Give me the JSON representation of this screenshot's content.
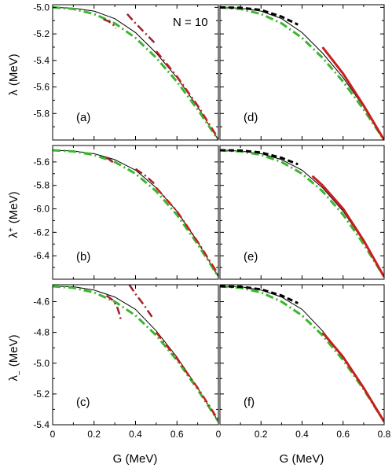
{
  "annotation": "N = 10",
  "y_titles": [
    {
      "base": "λ",
      "sup": "",
      "sub": "",
      "unit": "(MeV)"
    },
    {
      "base": "λ",
      "sup": "+",
      "sub": "",
      "unit": "(MeV)"
    },
    {
      "base": "λ",
      "sup": "",
      "sub": "−",
      "unit": "(MeV)"
    }
  ],
  "x_title": "G  (MeV)",
  "colors": {
    "exact": "#000000",
    "dark_red": "#a0202a",
    "red": "#c81e1e",
    "green": "#3ab72e",
    "black_dash": "#000000"
  },
  "chart_data": [
    {
      "type": "line",
      "label": "(a)",
      "xlim": [
        0,
        0.8
      ],
      "ylim": [
        -6.0,
        -4.98
      ],
      "yticks": [
        -5.0,
        -5.2,
        -5.4,
        -5.6,
        -5.8
      ],
      "ytick_labels": [
        "-5.0",
        "-5.2",
        "-5.4",
        "-5.6",
        "-5.8"
      ],
      "xticks": [
        0,
        0.2,
        0.4,
        0.6,
        0.8
      ],
      "xtick_labels": [],
      "series": [
        {
          "color": "exact",
          "style": "solid",
          "width": 1,
          "x": [
            0,
            0.1,
            0.2,
            0.3,
            0.4,
            0.5,
            0.6,
            0.7,
            0.8
          ],
          "y": [
            -5.0,
            -5.006,
            -5.028,
            -5.085,
            -5.19,
            -5.345,
            -5.53,
            -5.75,
            -6.0
          ]
        },
        {
          "color": "green",
          "style": "dashdot",
          "width": 3,
          "x": [
            0,
            0.1,
            0.2,
            0.3,
            0.4,
            0.5,
            0.6,
            0.7,
            0.8
          ],
          "y": [
            -5.0,
            -5.012,
            -5.05,
            -5.12,
            -5.23,
            -5.38,
            -5.56,
            -5.77,
            -6.0
          ]
        },
        {
          "color": "dark_red",
          "style": "dashdot",
          "width": 2.5,
          "x": [
            0.245,
            0.27,
            0.29,
            0.305
          ],
          "y": [
            -5.09,
            -5.105,
            -5.125,
            -5.16
          ]
        },
        {
          "color": "dark_red",
          "style": "dashdot",
          "width": 2.5,
          "x": [
            0.36,
            0.4,
            0.45,
            0.5
          ],
          "y": [
            -5.05,
            -5.12,
            -5.2,
            -5.28
          ]
        },
        {
          "color": "red",
          "style": "dashdot",
          "width": 2.5,
          "x": [
            0.5,
            0.6,
            0.7,
            0.8
          ],
          "y": [
            -5.33,
            -5.52,
            -5.74,
            -5.99
          ]
        }
      ]
    },
    {
      "type": "line",
      "label": "(b)",
      "xlim": [
        0,
        0.8
      ],
      "ylim": [
        -6.6,
        -5.46
      ],
      "yticks": [
        -5.6,
        -5.8,
        -6.0,
        -6.2,
        -6.4
      ],
      "ytick_labels": [
        "-5.6",
        "-5.8",
        "-6.0",
        "-6.2",
        "-6.4"
      ],
      "xticks": [
        0,
        0.2,
        0.4,
        0.6,
        0.8
      ],
      "xtick_labels": [],
      "series": [
        {
          "color": "exact",
          "style": "solid",
          "width": 1,
          "x": [
            0,
            0.1,
            0.2,
            0.3,
            0.4,
            0.5,
            0.6,
            0.7,
            0.8
          ],
          "y": [
            -5.5,
            -5.507,
            -5.53,
            -5.58,
            -5.67,
            -5.82,
            -6.02,
            -6.28,
            -6.58
          ]
        },
        {
          "color": "green",
          "style": "dashdot",
          "width": 3,
          "x": [
            0,
            0.1,
            0.2,
            0.3,
            0.4,
            0.5,
            0.6,
            0.7,
            0.8
          ],
          "y": [
            -5.5,
            -5.51,
            -5.54,
            -5.6,
            -5.7,
            -5.85,
            -6.05,
            -6.3,
            -6.58
          ]
        },
        {
          "color": "dark_red",
          "style": "dashdot",
          "width": 2.5,
          "x": [
            0.26,
            0.28,
            0.3
          ],
          "y": [
            -5.565,
            -5.585,
            -5.62
          ]
        },
        {
          "color": "dark_red",
          "style": "dashdot",
          "width": 2.5,
          "x": [
            0.4,
            0.45,
            0.5
          ],
          "y": [
            -5.66,
            -5.72,
            -5.8
          ]
        },
        {
          "color": "red",
          "style": "dashdot",
          "width": 2.5,
          "x": [
            0.5,
            0.6,
            0.7,
            0.8
          ],
          "y": [
            -5.82,
            -6.02,
            -6.28,
            -6.56
          ]
        }
      ]
    },
    {
      "type": "line",
      "label": "(c)",
      "xlim": [
        0,
        0.8
      ],
      "ylim": [
        -5.4,
        -4.49
      ],
      "yticks": [
        -4.6,
        -4.8,
        -5.0,
        -5.2,
        -5.4
      ],
      "ytick_labels": [
        "-4.6",
        "-4.8",
        "-5.0",
        "-5.2",
        "-5.4"
      ],
      "xticks": [
        0,
        0.2,
        0.4,
        0.6,
        0.8
      ],
      "xtick_labels": [
        "0",
        "0.2",
        "0.4",
        "0.6",
        "0"
      ],
      "series": [
        {
          "color": "exact",
          "style": "solid",
          "width": 1,
          "x": [
            0,
            0.1,
            0.2,
            0.3,
            0.4,
            0.5,
            0.6,
            0.7,
            0.8
          ],
          "y": [
            -4.5,
            -4.503,
            -4.525,
            -4.57,
            -4.65,
            -4.79,
            -4.96,
            -5.16,
            -5.38
          ]
        },
        {
          "color": "green",
          "style": "dashdot",
          "width": 3,
          "x": [
            0,
            0.1,
            0.2,
            0.3,
            0.4,
            0.5,
            0.6,
            0.7,
            0.8
          ],
          "y": [
            -4.5,
            -4.51,
            -4.54,
            -4.6,
            -4.69,
            -4.82,
            -4.98,
            -5.17,
            -5.38
          ]
        },
        {
          "color": "dark_red",
          "style": "dashdot",
          "width": 2.5,
          "x": [
            0.26,
            0.29,
            0.31,
            0.32,
            0.33
          ],
          "y": [
            -4.56,
            -4.59,
            -4.63,
            -4.67,
            -4.72
          ]
        },
        {
          "color": "dark_red",
          "style": "dashdot",
          "width": 2.5,
          "x": [
            0.37,
            0.4,
            0.44,
            0.48
          ],
          "y": [
            -4.49,
            -4.55,
            -4.62,
            -4.7
          ]
        },
        {
          "color": "red",
          "style": "dashdot",
          "width": 2.5,
          "x": [
            0.5,
            0.6,
            0.7,
            0.8
          ],
          "y": [
            -4.8,
            -4.97,
            -5.16,
            -5.37
          ]
        }
      ]
    },
    {
      "type": "line",
      "label": "(d)",
      "xlim": [
        0,
        0.8
      ],
      "ylim": [
        -6.0,
        -4.98
      ],
      "yticks": [
        -5.0,
        -5.2,
        -5.4,
        -5.6,
        -5.8
      ],
      "ytick_labels": [],
      "xticks": [
        0,
        0.2,
        0.4,
        0.6,
        0.8
      ],
      "xtick_labels": [],
      "series": [
        {
          "color": "exact",
          "style": "solid",
          "width": 1,
          "x": [
            0,
            0.1,
            0.2,
            0.3,
            0.4,
            0.5,
            0.6,
            0.7,
            0.8
          ],
          "y": [
            -5.0,
            -5.006,
            -5.028,
            -5.085,
            -5.19,
            -5.345,
            -5.53,
            -5.75,
            -6.0
          ]
        },
        {
          "color": "green",
          "style": "dashdot",
          "width": 3,
          "x": [
            0,
            0.1,
            0.2,
            0.3,
            0.4,
            0.5,
            0.6,
            0.7,
            0.8
          ],
          "y": [
            -5.0,
            -5.012,
            -5.05,
            -5.12,
            -5.23,
            -5.38,
            -5.56,
            -5.77,
            -6.0
          ]
        },
        {
          "color": "black_dash",
          "style": "dash",
          "width": 3,
          "x": [
            0,
            0.1,
            0.2,
            0.3,
            0.38
          ],
          "y": [
            -5.0,
            -5.003,
            -5.02,
            -5.07,
            -5.13
          ]
        },
        {
          "color": "red",
          "style": "solid",
          "width": 3,
          "x": [
            0.5,
            0.55,
            0.6,
            0.7,
            0.8
          ],
          "y": [
            -5.3,
            -5.4,
            -5.5,
            -5.74,
            -6.0
          ]
        }
      ]
    },
    {
      "type": "line",
      "label": "(e)",
      "xlim": [
        0,
        0.8
      ],
      "ylim": [
        -6.6,
        -5.46
      ],
      "yticks": [
        -5.6,
        -5.8,
        -6.0,
        -6.2,
        -6.4
      ],
      "ytick_labels": [],
      "xticks": [
        0,
        0.2,
        0.4,
        0.6,
        0.8
      ],
      "xtick_labels": [],
      "series": [
        {
          "color": "exact",
          "style": "solid",
          "width": 1,
          "x": [
            0,
            0.1,
            0.2,
            0.3,
            0.4,
            0.5,
            0.6,
            0.7,
            0.8
          ],
          "y": [
            -5.5,
            -5.507,
            -5.53,
            -5.58,
            -5.67,
            -5.82,
            -6.02,
            -6.28,
            -6.58
          ]
        },
        {
          "color": "green",
          "style": "dashdot",
          "width": 3,
          "x": [
            0,
            0.1,
            0.2,
            0.3,
            0.4,
            0.5,
            0.6,
            0.7,
            0.8
          ],
          "y": [
            -5.5,
            -5.51,
            -5.54,
            -5.6,
            -5.7,
            -5.85,
            -6.05,
            -6.3,
            -6.58
          ]
        },
        {
          "color": "black_dash",
          "style": "dash",
          "width": 3,
          "x": [
            0,
            0.1,
            0.2,
            0.3,
            0.38
          ],
          "y": [
            -5.5,
            -5.503,
            -5.52,
            -5.565,
            -5.62
          ]
        },
        {
          "color": "red",
          "style": "solid",
          "width": 3,
          "x": [
            0.45,
            0.5,
            0.6,
            0.7,
            0.8
          ],
          "y": [
            -5.72,
            -5.8,
            -6.0,
            -6.27,
            -6.58
          ]
        }
      ]
    },
    {
      "type": "line",
      "label": "(f)",
      "xlim": [
        0,
        0.8
      ],
      "ylim": [
        -5.4,
        -4.49
      ],
      "yticks": [
        -4.6,
        -4.8,
        -5.0,
        -5.2,
        -5.4
      ],
      "ytick_labels": [],
      "xticks": [
        0,
        0.2,
        0.4,
        0.6,
        0.8
      ],
      "xtick_labels": [
        "0.2",
        "0.4",
        "0.6",
        "0.8"
      ],
      "series": [
        {
          "color": "exact",
          "style": "solid",
          "width": 1,
          "x": [
            0,
            0.1,
            0.2,
            0.3,
            0.4,
            0.5,
            0.6,
            0.7,
            0.8
          ],
          "y": [
            -4.5,
            -4.503,
            -4.525,
            -4.57,
            -4.65,
            -4.79,
            -4.96,
            -5.16,
            -5.38
          ]
        },
        {
          "color": "green",
          "style": "dashdot",
          "width": 3,
          "x": [
            0,
            0.1,
            0.2,
            0.3,
            0.4,
            0.5,
            0.6,
            0.7,
            0.8
          ],
          "y": [
            -4.5,
            -4.51,
            -4.54,
            -4.6,
            -4.69,
            -4.82,
            -4.98,
            -5.17,
            -5.38
          ]
        },
        {
          "color": "black_dash",
          "style": "dash",
          "width": 3,
          "x": [
            0,
            0.1,
            0.2,
            0.3,
            0.38
          ],
          "y": [
            -4.5,
            -4.503,
            -4.52,
            -4.56,
            -4.61
          ]
        },
        {
          "color": "red",
          "style": "solid",
          "width": 3,
          "x": [
            0.5,
            0.6,
            0.7,
            0.8
          ],
          "y": [
            -4.8,
            -4.96,
            -5.16,
            -5.38
          ]
        }
      ]
    }
  ]
}
